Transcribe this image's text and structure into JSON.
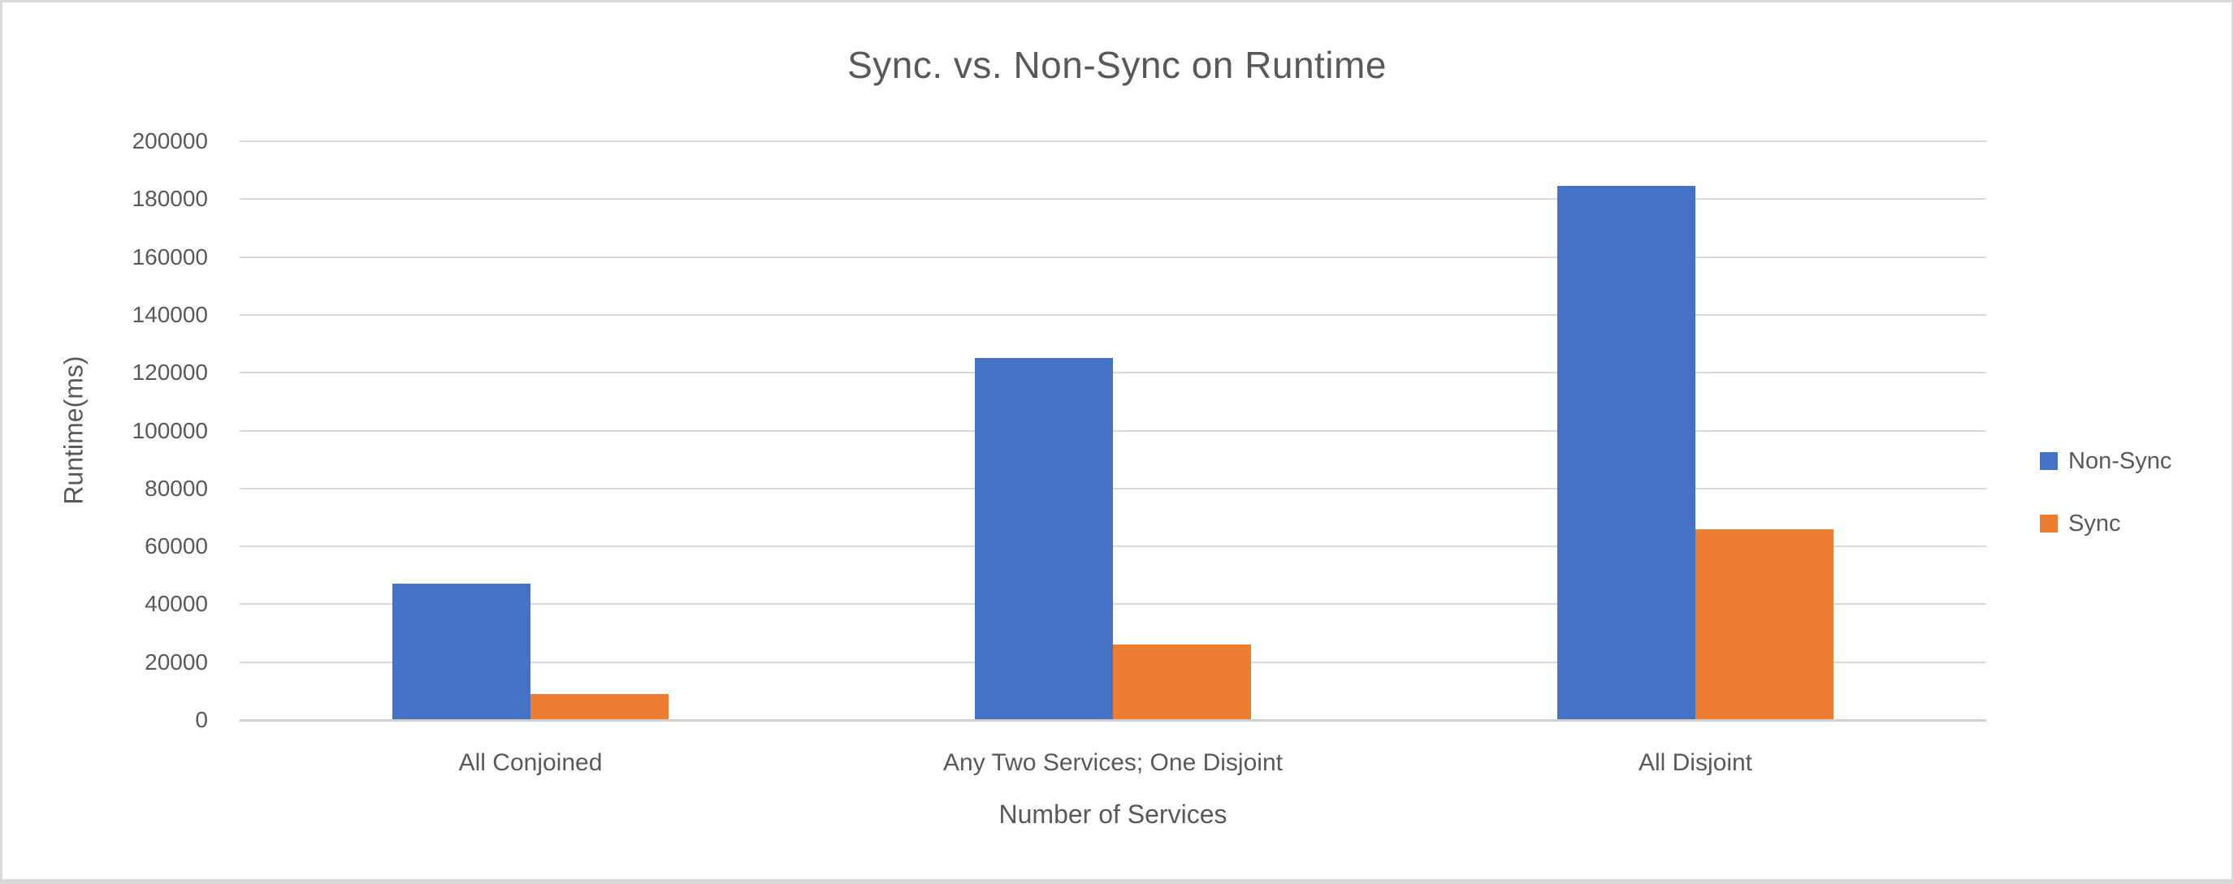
{
  "chart_data": {
    "type": "bar",
    "title": "Sync. vs. Non-Sync on Runtime",
    "categories": [
      "All Conjoined",
      "Any Two Services; One Disjoint",
      "All Disjoint"
    ],
    "series": [
      {
        "name": "Non-Sync",
        "color": "#4472C4",
        "values": [
          47000,
          125000,
          184500
        ]
      },
      {
        "name": "Sync",
        "color": "#ED7D31",
        "values": [
          9000,
          26000,
          66000
        ]
      }
    ],
    "xlabel": "Number of Services",
    "ylabel": "Runtime(ms)",
    "ylim": [
      0,
      200000
    ],
    "yticks": [
      0,
      20000,
      40000,
      60000,
      80000,
      100000,
      120000,
      140000,
      160000,
      180000,
      200000
    ],
    "grid": true,
    "legend_position": "right"
  },
  "colors": {
    "text": "#595959",
    "gridline": "#D9D9D9",
    "axis_line": "#D0D0D0",
    "frame_border": "#D9D9D9",
    "background": "#FFFFFF"
  }
}
